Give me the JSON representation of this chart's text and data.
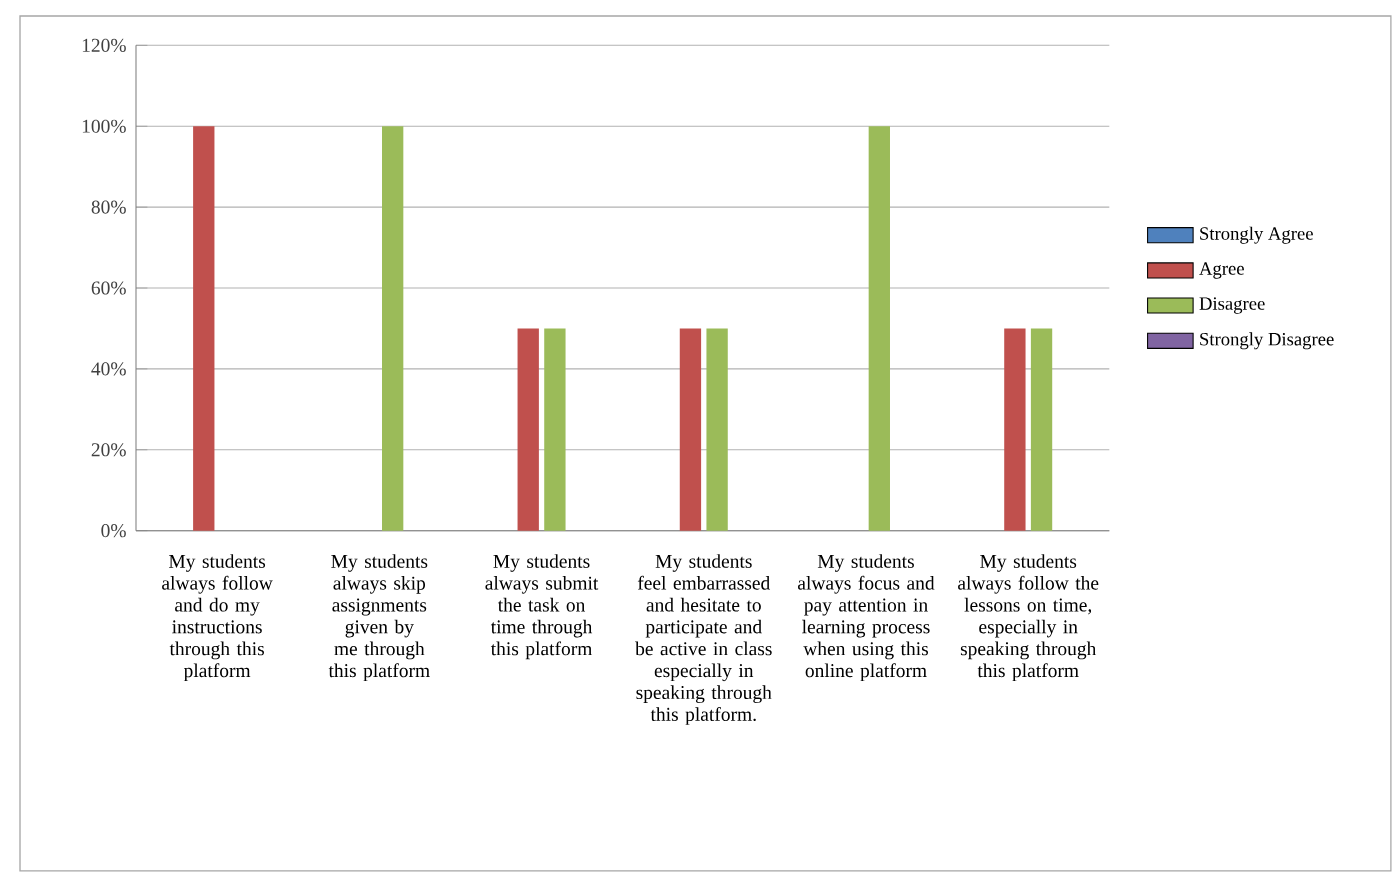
{
  "chart_data": {
    "type": "bar",
    "categories": [
      "My students always follow and do my instructions through this platform",
      "My students always skip assignments given by me through this platform",
      "My students always submit the task on time through this platform",
      "My students feel embarrassed and hesitate to participate and be active in class especially in speaking through this platform.",
      "My students always focus and pay attention in learning process when using this online platform",
      "My students always follow the lessons on time, especially in speaking through this platform"
    ],
    "series": [
      {
        "name": "Strongly Agree",
        "color": "#4f81bd",
        "values": [
          0,
          0,
          0,
          0,
          0,
          0
        ]
      },
      {
        "name": "Agree",
        "color": "#c0504d",
        "values": [
          100,
          0,
          50,
          50,
          0,
          50
        ]
      },
      {
        "name": "Disagree",
        "color": "#9bbb59",
        "values": [
          0,
          100,
          50,
          50,
          100,
          50
        ]
      },
      {
        "name": "Strongly Disagree",
        "color": "#8064a2",
        "values": [
          0,
          0,
          0,
          0,
          0,
          0
        ]
      }
    ],
    "ylim": [
      0,
      120
    ],
    "yticks": [
      {
        "value": 0,
        "label": "0%"
      },
      {
        "value": 20,
        "label": "20%"
      },
      {
        "value": 40,
        "label": "40%"
      },
      {
        "value": 60,
        "label": "60%"
      },
      {
        "value": 80,
        "label": "80%"
      },
      {
        "value": 100,
        "label": "100%"
      },
      {
        "value": 120,
        "label": "120%"
      }
    ],
    "grid": "y",
    "legend": "right"
  }
}
